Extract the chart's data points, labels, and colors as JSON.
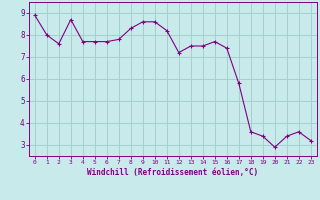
{
  "x": [
    0,
    1,
    2,
    3,
    4,
    5,
    6,
    7,
    8,
    9,
    10,
    11,
    12,
    13,
    14,
    15,
    16,
    17,
    18,
    19,
    20,
    21,
    22,
    23
  ],
  "y": [
    8.9,
    8.0,
    7.6,
    8.7,
    7.7,
    7.7,
    7.7,
    7.8,
    8.3,
    8.6,
    8.6,
    8.2,
    7.2,
    7.5,
    7.5,
    7.7,
    7.4,
    5.8,
    3.6,
    3.4,
    2.9,
    3.4,
    3.6,
    3.2
  ],
  "line_color": "#800080",
  "marker": "+",
  "marker_color": "#800080",
  "bg_color": "#c8eaea",
  "grid_color": "#a0cccc",
  "xlabel": "Windchill (Refroidissement éolien,°C)",
  "xlim": [
    -0.5,
    23.5
  ],
  "ylim": [
    2.5,
    9.5
  ],
  "yticks": [
    3,
    4,
    5,
    6,
    7,
    8,
    9
  ],
  "xticks": [
    0,
    1,
    2,
    3,
    4,
    5,
    6,
    7,
    8,
    9,
    10,
    11,
    12,
    13,
    14,
    15,
    16,
    17,
    18,
    19,
    20,
    21,
    22,
    23
  ],
  "tick_label_color": "#800080",
  "xlabel_color": "#800080",
  "spine_color": "#800080"
}
